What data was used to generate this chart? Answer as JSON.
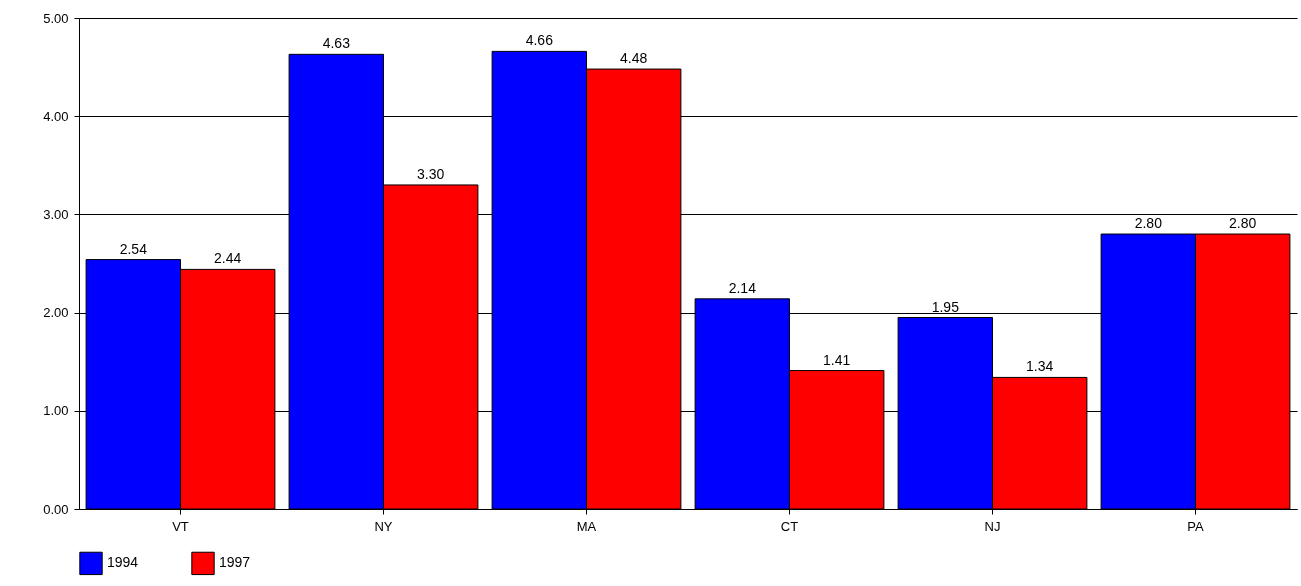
{
  "chart_data": {
    "type": "bar",
    "categories": [
      "VT",
      "NY",
      "MA",
      "CT",
      "NJ",
      "PA"
    ],
    "series": [
      {
        "name": "1994",
        "color": "#0000ff",
        "values": [
          2.54,
          4.63,
          4.66,
          2.14,
          1.95,
          2.8
        ],
        "value_labels": [
          "2.54",
          "4.63",
          "4.66",
          "2.14",
          "1.95",
          "2.80"
        ]
      },
      {
        "name": "1997",
        "color": "#ff0000",
        "values": [
          2.44,
          3.3,
          4.48,
          1.41,
          1.34,
          2.8
        ],
        "value_labels": [
          "2.44",
          "3.30",
          "4.48",
          "1.41",
          "1.34",
          "2.80"
        ]
      }
    ],
    "ylim": [
      0,
      5
    ],
    "yticks": [
      {
        "value": 0,
        "label": "0.00"
      },
      {
        "value": 1,
        "label": "1.00"
      },
      {
        "value": 2,
        "label": "2.00"
      },
      {
        "value": 3,
        "label": "3.00"
      },
      {
        "value": 4,
        "label": "4.00"
      },
      {
        "value": 5,
        "label": "5.00"
      }
    ],
    "grid": "y",
    "legend": "bottom"
  }
}
